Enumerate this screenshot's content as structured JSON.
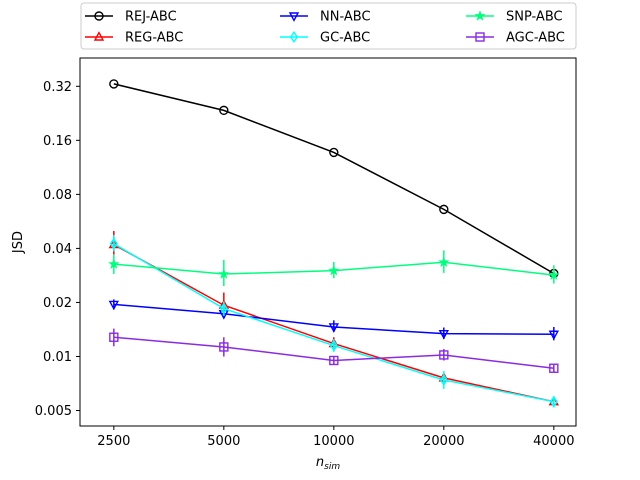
{
  "chart_data": {
    "type": "line",
    "title": "",
    "xlabel": "n_sim",
    "xlabel_main": "n",
    "xlabel_sub": "sim",
    "ylabel": "JSD",
    "xscale": "log2",
    "yscale": "log2",
    "x": [
      2500,
      5000,
      10000,
      20000,
      40000
    ],
    "x_tick_labels": [
      "2500",
      "5000",
      "10000",
      "20000",
      "40000"
    ],
    "y_ticks": [
      0.005,
      0.01,
      0.02,
      0.04,
      0.08,
      0.16,
      0.32
    ],
    "y_tick_labels": [
      "0.005",
      "0.01",
      "0.02",
      "0.04",
      "0.08",
      "0.16",
      "0.32"
    ],
    "xlim": [
      2020,
      46000
    ],
    "ylim": [
      0.0041,
      0.46
    ],
    "legend_position": "top, above plot, 3 columns",
    "series": [
      {
        "name": "REJ-ABC",
        "color": "#000000",
        "marker": "circle",
        "values": [
          0.33,
          0.235,
          0.137,
          0.066,
          0.029
        ],
        "err_low": [
          0.33,
          0.235,
          0.137,
          0.066,
          0.029
        ],
        "err_high": [
          0.33,
          0.235,
          0.137,
          0.066,
          0.029
        ]
      },
      {
        "name": "REG-ABC",
        "color": "#ff0000",
        "marker": "triangle-up",
        "values": [
          0.042,
          0.0193,
          0.0118,
          0.0076,
          0.0056
        ],
        "err_low": [
          0.037,
          0.0172,
          0.0109,
          0.0072,
          0.0054
        ],
        "err_high": [
          0.05,
          0.0227,
          0.0128,
          0.0081,
          0.0058
        ]
      },
      {
        "name": "NN-ABC",
        "color": "#0000ff",
        "marker": "triangle-down",
        "values": [
          0.0195,
          0.0173,
          0.0146,
          0.0134,
          0.0133
        ],
        "err_low": [
          0.0183,
          0.0163,
          0.0137,
          0.0125,
          0.0123
        ],
        "err_high": [
          0.0208,
          0.0183,
          0.0159,
          0.0145,
          0.0146
        ]
      },
      {
        "name": "GC-ABC",
        "color": "#00ffff",
        "marker": "diamond",
        "values": [
          0.0425,
          0.0185,
          0.0115,
          0.0074,
          0.0056
        ],
        "err_low": [
          0.0385,
          0.0168,
          0.0106,
          0.0066,
          0.0052
        ],
        "err_high": [
          0.0475,
          0.0203,
          0.0125,
          0.0083,
          0.006
        ]
      },
      {
        "name": "SNP-ABC",
        "color": "#00ff7f",
        "marker": "star",
        "values": [
          0.0327,
          0.0288,
          0.0301,
          0.0335,
          0.0284
        ],
        "err_low": [
          0.0288,
          0.0247,
          0.0273,
          0.0292,
          0.0255
        ],
        "err_high": [
          0.0369,
          0.0345,
          0.0336,
          0.039,
          0.0322
        ]
      },
      {
        "name": "AGC-ABC",
        "color": "#8a2be2",
        "marker": "square",
        "values": [
          0.0128,
          0.0113,
          0.0095,
          0.0102,
          0.0086
        ],
        "err_low": [
          0.0114,
          0.01,
          0.009,
          0.0095,
          0.0082
        ],
        "err_high": [
          0.0143,
          0.0128,
          0.01,
          0.011,
          0.009
        ]
      }
    ]
  }
}
